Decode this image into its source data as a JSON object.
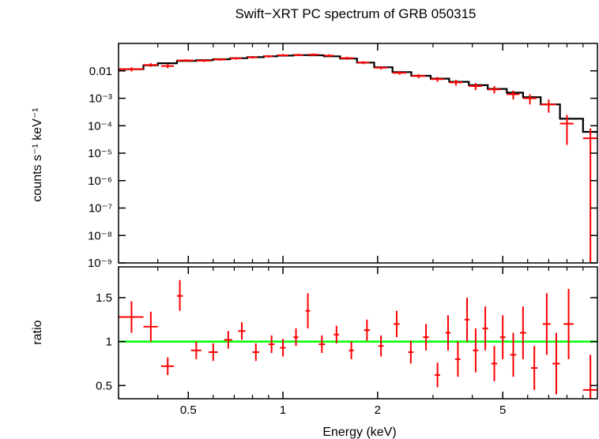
{
  "chart_data": [
    {
      "panel": "spectrum",
      "type": "scatter",
      "title": "Swift−XRT PC spectrum of GRB 050315",
      "xlabel": "Energy (keV)",
      "ylabel": "counts s⁻¹ keV⁻¹",
      "xscale": "log",
      "yscale": "log",
      "xlim": [
        0.3,
        10
      ],
      "ylim": [
        1e-09,
        0.1
      ],
      "yticks": [
        {
          "v": 0.01,
          "t": "0.01"
        },
        {
          "v": 0.001,
          "t": "10⁻³"
        },
        {
          "v": 0.0001,
          "t": "10⁻⁴"
        },
        {
          "v": 1e-05,
          "t": "10⁻⁵"
        },
        {
          "v": 1e-06,
          "t": "10⁻⁶"
        },
        {
          "v": 1e-07,
          "t": "10⁻⁷"
        },
        {
          "v": 1e-08,
          "t": "10⁻⁸"
        },
        {
          "v": 1e-09,
          "t": "10⁻⁹"
        }
      ],
      "grid": false,
      "series": [
        {
          "role": "data",
          "color": "#ff0000",
          "points": [
            {
              "x": 0.33,
              "xlo": 0.3,
              "xhi": 0.36,
              "y": 0.0115,
              "ylo": 0.0095,
              "yhi": 0.0135
            },
            {
              "x": 0.38,
              "xlo": 0.36,
              "xhi": 0.4,
              "y": 0.0165,
              "ylo": 0.014,
              "yhi": 0.019
            },
            {
              "x": 0.43,
              "xlo": 0.41,
              "xhi": 0.45,
              "y": 0.015,
              "ylo": 0.0125,
              "yhi": 0.0175
            },
            {
              "x": 0.49,
              "xlo": 0.46,
              "xhi": 0.52,
              "y": 0.024,
              "ylo": 0.0215,
              "yhi": 0.0265
            },
            {
              "x": 0.56,
              "xlo": 0.53,
              "xhi": 0.59,
              "y": 0.0235,
              "ylo": 0.021,
              "yhi": 0.026
            },
            {
              "x": 0.63,
              "xlo": 0.6,
              "xhi": 0.66,
              "y": 0.026,
              "ylo": 0.0235,
              "yhi": 0.0285
            },
            {
              "x": 0.71,
              "xlo": 0.68,
              "xhi": 0.74,
              "y": 0.0285,
              "ylo": 0.0255,
              "yhi": 0.0315
            },
            {
              "x": 0.8,
              "xlo": 0.77,
              "xhi": 0.83,
              "y": 0.031,
              "ylo": 0.028,
              "yhi": 0.034
            },
            {
              "x": 0.9,
              "xlo": 0.87,
              "xhi": 0.93,
              "y": 0.034,
              "ylo": 0.0305,
              "yhi": 0.0375
            },
            {
              "x": 1.0,
              "xlo": 0.96,
              "xhi": 1.04,
              "y": 0.037,
              "ylo": 0.033,
              "yhi": 0.041
            },
            {
              "x": 1.12,
              "xlo": 1.08,
              "xhi": 1.16,
              "y": 0.038,
              "ylo": 0.034,
              "yhi": 0.042
            },
            {
              "x": 1.25,
              "xlo": 1.2,
              "xhi": 1.3,
              "y": 0.039,
              "ylo": 0.035,
              "yhi": 0.043
            },
            {
              "x": 1.4,
              "xlo": 1.35,
              "xhi": 1.45,
              "y": 0.036,
              "ylo": 0.032,
              "yhi": 0.04
            },
            {
              "x": 1.6,
              "xlo": 1.52,
              "xhi": 1.68,
              "y": 0.029,
              "ylo": 0.0255,
              "yhi": 0.0325
            },
            {
              "x": 1.8,
              "xlo": 1.72,
              "xhi": 1.88,
              "y": 0.02,
              "ylo": 0.0175,
              "yhi": 0.0225
            },
            {
              "x": 2.05,
              "xlo": 1.95,
              "xhi": 2.15,
              "y": 0.013,
              "ylo": 0.0112,
              "yhi": 0.0148
            },
            {
              "x": 2.35,
              "xlo": 2.23,
              "xhi": 2.47,
              "y": 0.0085,
              "ylo": 0.0072,
              "yhi": 0.0098
            },
            {
              "x": 2.7,
              "xlo": 2.56,
              "xhi": 2.84,
              "y": 0.0065,
              "ylo": 0.0054,
              "yhi": 0.0076
            },
            {
              "x": 3.1,
              "xlo": 2.95,
              "xhi": 3.25,
              "y": 0.005,
              "ylo": 0.004,
              "yhi": 0.006
            },
            {
              "x": 3.55,
              "xlo": 3.38,
              "xhi": 3.72,
              "y": 0.0038,
              "ylo": 0.0029,
              "yhi": 0.0047
            },
            {
              "x": 4.1,
              "xlo": 3.9,
              "xhi": 4.3,
              "y": 0.0028,
              "ylo": 0.002,
              "yhi": 0.0036
            },
            {
              "x": 4.7,
              "xlo": 4.48,
              "xhi": 4.92,
              "y": 0.0021,
              "ylo": 0.0015,
              "yhi": 0.0028
            },
            {
              "x": 5.4,
              "xlo": 5.15,
              "xhi": 5.65,
              "y": 0.0014,
              "ylo": 0.0009,
              "yhi": 0.0019
            },
            {
              "x": 6.1,
              "xlo": 5.8,
              "xhi": 6.4,
              "y": 0.001,
              "ylo": 0.0006,
              "yhi": 0.0014
            },
            {
              "x": 7.0,
              "xlo": 6.6,
              "xhi": 7.4,
              "y": 0.0006,
              "ylo": 0.0003,
              "yhi": 0.0009
            },
            {
              "x": 8.0,
              "xlo": 7.6,
              "xhi": 8.4,
              "y": 0.00012,
              "ylo": 2e-05,
              "yhi": 0.00025
            },
            {
              "x": 9.5,
              "xlo": 9.0,
              "xhi": 10.0,
              "y": 3.5e-05,
              "ylo": 1e-09,
              "yhi": 8e-05
            }
          ]
        },
        {
          "role": "model",
          "color": "#000000",
          "steps": [
            {
              "x0": 0.3,
              "x1": 0.36,
              "y": 0.0115
            },
            {
              "x0": 0.36,
              "x1": 0.4,
              "y": 0.016
            },
            {
              "x0": 0.4,
              "x1": 0.46,
              "y": 0.019
            },
            {
              "x0": 0.46,
              "x1": 0.53,
              "y": 0.023
            },
            {
              "x0": 0.53,
              "x1": 0.6,
              "y": 0.0245
            },
            {
              "x0": 0.6,
              "x1": 0.68,
              "y": 0.0265
            },
            {
              "x0": 0.68,
              "x1": 0.77,
              "y": 0.029
            },
            {
              "x0": 0.77,
              "x1": 0.87,
              "y": 0.0315
            },
            {
              "x0": 0.87,
              "x1": 0.96,
              "y": 0.034
            },
            {
              "x0": 0.96,
              "x1": 1.08,
              "y": 0.036
            },
            {
              "x0": 1.08,
              "x1": 1.2,
              "y": 0.0375
            },
            {
              "x0": 1.2,
              "x1": 1.35,
              "y": 0.037
            },
            {
              "x0": 1.35,
              "x1": 1.52,
              "y": 0.034
            },
            {
              "x0": 1.52,
              "x1": 1.72,
              "y": 0.028
            },
            {
              "x0": 1.72,
              "x1": 1.95,
              "y": 0.02
            },
            {
              "x0": 1.95,
              "x1": 2.23,
              "y": 0.0135
            },
            {
              "x0": 2.23,
              "x1": 2.56,
              "y": 0.009
            },
            {
              "x0": 2.56,
              "x1": 2.95,
              "y": 0.0066
            },
            {
              "x0": 2.95,
              "x1": 3.38,
              "y": 0.0052
            },
            {
              "x0": 3.38,
              "x1": 3.9,
              "y": 0.004
            },
            {
              "x0": 3.9,
              "x1": 4.48,
              "y": 0.003
            },
            {
              "x0": 4.48,
              "x1": 5.15,
              "y": 0.0022
            },
            {
              "x0": 5.15,
              "x1": 5.8,
              "y": 0.0016
            },
            {
              "x0": 5.8,
              "x1": 6.6,
              "y": 0.0011
            },
            {
              "x0": 6.6,
              "x1": 7.6,
              "y": 0.0006
            },
            {
              "x0": 7.6,
              "x1": 9.0,
              "y": 0.00018
            },
            {
              "x0": 9.0,
              "x1": 10.0,
              "y": 6e-05
            }
          ]
        }
      ]
    },
    {
      "panel": "ratio",
      "type": "scatter",
      "xlabel": "Energy (keV)",
      "ylabel": "ratio",
      "xscale": "log",
      "yscale": "linear",
      "xlim": [
        0.3,
        10
      ],
      "ylim": [
        0.35,
        1.85
      ],
      "xticks": [
        {
          "v": 0.5,
          "t": "0.5"
        },
        {
          "v": 1,
          "t": "1"
        },
        {
          "v": 2,
          "t": "2"
        },
        {
          "v": 5,
          "t": "5"
        }
      ],
      "yticks": [
        {
          "v": 0.5,
          "t": "0.5"
        },
        {
          "v": 1,
          "t": "1"
        },
        {
          "v": 1.5,
          "t": "1.5"
        }
      ],
      "reference_line": {
        "y": 1,
        "color": "#00ff00"
      },
      "grid": false,
      "series": [
        {
          "role": "data",
          "color": "#ff0000",
          "points": [
            {
              "x": 0.33,
              "xlo": 0.3,
              "xhi": 0.36,
              "y": 1.28,
              "ylo": 1.1,
              "yhi": 1.46
            },
            {
              "x": 0.38,
              "xlo": 0.36,
              "xhi": 0.4,
              "y": 1.17,
              "ylo": 1.0,
              "yhi": 1.34
            },
            {
              "x": 0.43,
              "xlo": 0.41,
              "xhi": 0.45,
              "y": 0.72,
              "ylo": 0.62,
              "yhi": 0.82
            },
            {
              "x": 0.47,
              "xlo": 0.46,
              "xhi": 0.48,
              "y": 1.52,
              "ylo": 1.35,
              "yhi": 1.7
            },
            {
              "x": 0.53,
              "xlo": 0.51,
              "xhi": 0.55,
              "y": 0.9,
              "ylo": 0.8,
              "yhi": 1.0
            },
            {
              "x": 0.6,
              "xlo": 0.58,
              "xhi": 0.62,
              "y": 0.88,
              "ylo": 0.78,
              "yhi": 0.98
            },
            {
              "x": 0.67,
              "xlo": 0.65,
              "xhi": 0.69,
              "y": 1.02,
              "ylo": 0.92,
              "yhi": 1.12
            },
            {
              "x": 0.74,
              "xlo": 0.72,
              "xhi": 0.76,
              "y": 1.12,
              "ylo": 1.02,
              "yhi": 1.22
            },
            {
              "x": 0.82,
              "xlo": 0.8,
              "xhi": 0.84,
              "y": 0.88,
              "ylo": 0.78,
              "yhi": 0.98
            },
            {
              "x": 0.92,
              "xlo": 0.9,
              "xhi": 0.94,
              "y": 0.97,
              "ylo": 0.87,
              "yhi": 1.07
            },
            {
              "x": 1.0,
              "xlo": 0.98,
              "xhi": 1.02,
              "y": 0.93,
              "ylo": 0.83,
              "yhi": 1.03
            },
            {
              "x": 1.1,
              "xlo": 1.08,
              "xhi": 1.12,
              "y": 1.05,
              "ylo": 0.95,
              "yhi": 1.15
            },
            {
              "x": 1.2,
              "xlo": 1.18,
              "xhi": 1.22,
              "y": 1.35,
              "ylo": 1.15,
              "yhi": 1.55
            },
            {
              "x": 1.33,
              "xlo": 1.3,
              "xhi": 1.36,
              "y": 0.97,
              "ylo": 0.87,
              "yhi": 1.07
            },
            {
              "x": 1.48,
              "xlo": 1.45,
              "xhi": 1.51,
              "y": 1.08,
              "ylo": 0.98,
              "yhi": 1.18
            },
            {
              "x": 1.65,
              "xlo": 1.62,
              "xhi": 1.68,
              "y": 0.9,
              "ylo": 0.8,
              "yhi": 1.0
            },
            {
              "x": 1.85,
              "xlo": 1.81,
              "xhi": 1.89,
              "y": 1.13,
              "ylo": 1.01,
              "yhi": 1.25
            },
            {
              "x": 2.05,
              "xlo": 2.01,
              "xhi": 2.09,
              "y": 0.95,
              "ylo": 0.83,
              "yhi": 1.07
            },
            {
              "x": 2.3,
              "xlo": 2.25,
              "xhi": 2.35,
              "y": 1.2,
              "ylo": 1.05,
              "yhi": 1.35
            },
            {
              "x": 2.55,
              "xlo": 2.5,
              "xhi": 2.6,
              "y": 0.88,
              "ylo": 0.75,
              "yhi": 1.01
            },
            {
              "x": 2.85,
              "xlo": 2.79,
              "xhi": 2.91,
              "y": 1.05,
              "ylo": 0.9,
              "yhi": 1.2
            },
            {
              "x": 3.1,
              "xlo": 3.04,
              "xhi": 3.16,
              "y": 0.62,
              "ylo": 0.48,
              "yhi": 0.76
            },
            {
              "x": 3.35,
              "xlo": 3.29,
              "xhi": 3.41,
              "y": 1.1,
              "ylo": 0.9,
              "yhi": 1.3
            },
            {
              "x": 3.6,
              "xlo": 3.53,
              "xhi": 3.67,
              "y": 0.8,
              "ylo": 0.6,
              "yhi": 1.0
            },
            {
              "x": 3.85,
              "xlo": 3.78,
              "xhi": 3.92,
              "y": 1.25,
              "ylo": 1.0,
              "yhi": 1.5
            },
            {
              "x": 4.1,
              "xlo": 4.02,
              "xhi": 4.18,
              "y": 0.9,
              "ylo": 0.65,
              "yhi": 1.15
            },
            {
              "x": 4.4,
              "xlo": 4.31,
              "xhi": 4.49,
              "y": 1.15,
              "ylo": 0.9,
              "yhi": 1.4
            },
            {
              "x": 4.7,
              "xlo": 4.6,
              "xhi": 4.8,
              "y": 0.75,
              "ylo": 0.55,
              "yhi": 0.95
            },
            {
              "x": 5.0,
              "xlo": 4.9,
              "xhi": 5.1,
              "y": 1.05,
              "ylo": 0.8,
              "yhi": 1.3
            },
            {
              "x": 5.4,
              "xlo": 5.28,
              "xhi": 5.52,
              "y": 0.85,
              "ylo": 0.6,
              "yhi": 1.1
            },
            {
              "x": 5.8,
              "xlo": 5.67,
              "xhi": 5.93,
              "y": 1.1,
              "ylo": 0.8,
              "yhi": 1.4
            },
            {
              "x": 6.3,
              "xlo": 6.15,
              "xhi": 6.45,
              "y": 0.7,
              "ylo": 0.45,
              "yhi": 0.95
            },
            {
              "x": 6.9,
              "xlo": 6.7,
              "xhi": 7.1,
              "y": 1.2,
              "ylo": 0.85,
              "yhi": 1.55
            },
            {
              "x": 7.4,
              "xlo": 7.2,
              "xhi": 7.6,
              "y": 0.75,
              "ylo": 0.4,
              "yhi": 1.1
            },
            {
              "x": 8.1,
              "xlo": 7.8,
              "xhi": 8.4,
              "y": 1.2,
              "ylo": 0.8,
              "yhi": 1.6
            },
            {
              "x": 9.5,
              "xlo": 9.0,
              "xhi": 10.0,
              "y": 0.45,
              "ylo": 0.35,
              "yhi": 0.85
            }
          ]
        }
      ]
    }
  ]
}
